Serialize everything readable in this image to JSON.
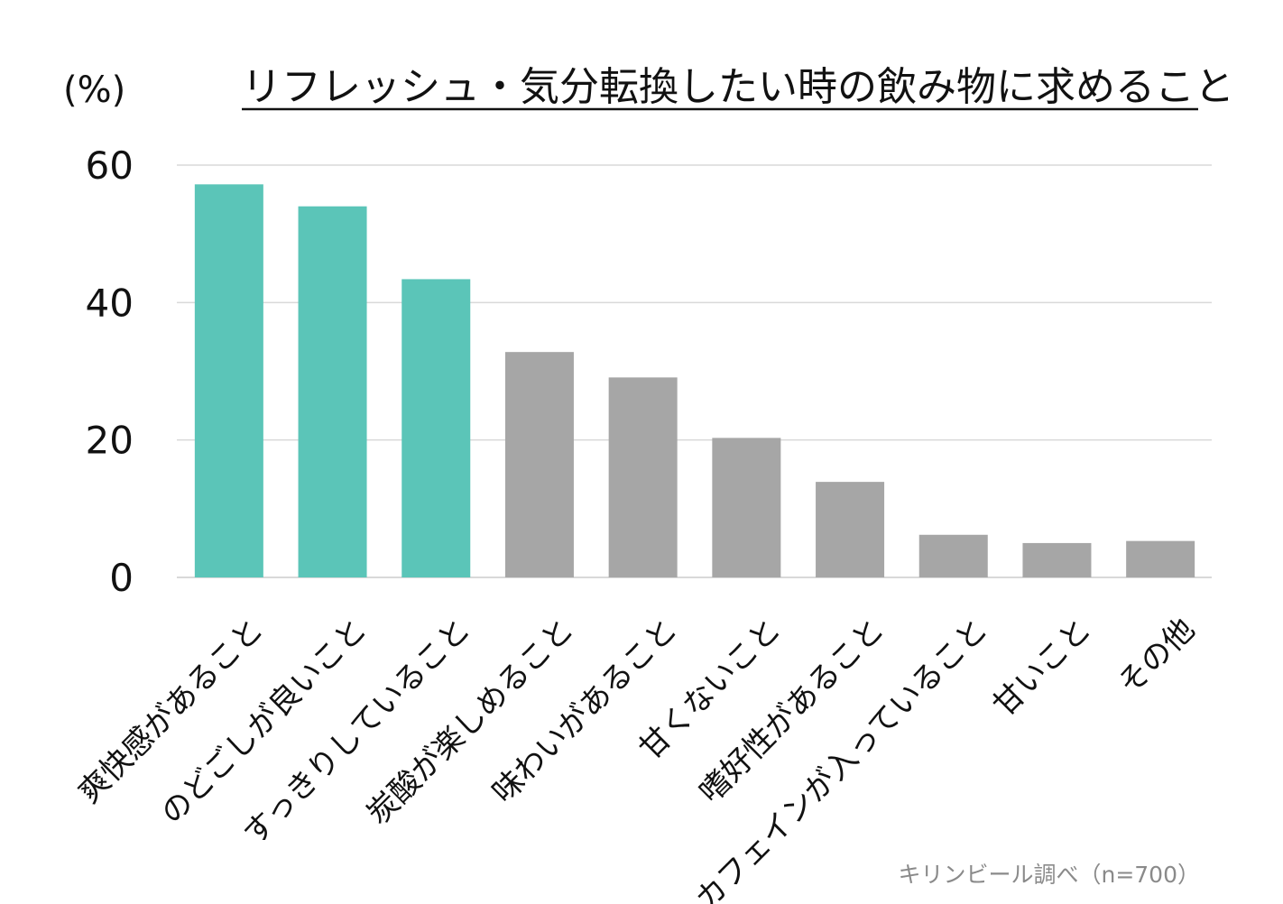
{
  "chart_data": {
    "type": "bar",
    "title": "リフレッシュ・気分転換したい時の飲み物に求めること",
    "ylabel": "(%)",
    "xlabel": "",
    "categories": [
      "爽快感があること",
      "のどごしが良いこと",
      "すっきりしていること",
      "炭酸が楽しめること",
      "味わいがあること",
      "甘くないこと",
      "嗜好性があること",
      "カフェインが入っていること",
      "甘いこと",
      "その他"
    ],
    "values": [
      57.2,
      54.0,
      43.4,
      32.8,
      29.1,
      20.3,
      13.9,
      6.2,
      5.0,
      5.3
    ],
    "ylim": [
      0,
      60
    ],
    "yticks": [
      0,
      20,
      40,
      60
    ],
    "grid": true,
    "highlight_count": 3,
    "colors": {
      "highlight": "#5bc5b8",
      "default": "#a6a6a6",
      "grid": "#d9d9d9",
      "text": "#111111",
      "source": "#8a8a8a"
    }
  },
  "source": "キリンビール調べ（n=700）"
}
